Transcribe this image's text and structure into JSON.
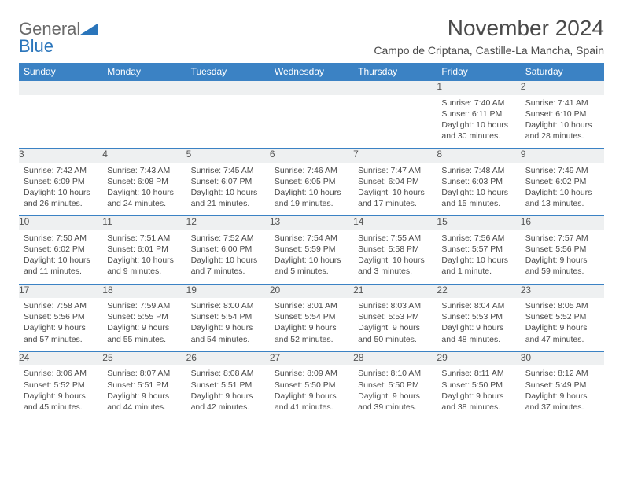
{
  "brand": {
    "part1": "General",
    "part2": "Blue"
  },
  "title": "November 2024",
  "location": "Campo de Criptana, Castille-La Mancha, Spain",
  "colors": {
    "header_bg": "#3b82c4",
    "header_text": "#ffffff",
    "daynum_bg": "#eef0f1",
    "border": "#3b82c4",
    "text": "#4a4a4a",
    "brand_gray": "#6a6a6a",
    "brand_blue": "#2a75bb"
  },
  "weekdays": [
    "Sunday",
    "Monday",
    "Tuesday",
    "Wednesday",
    "Thursday",
    "Friday",
    "Saturday"
  ],
  "weeks": [
    [
      null,
      null,
      null,
      null,
      null,
      {
        "n": "1",
        "sunrise": "Sunrise: 7:40 AM",
        "sunset": "Sunset: 6:11 PM",
        "daylight": "Daylight: 10 hours and 30 minutes."
      },
      {
        "n": "2",
        "sunrise": "Sunrise: 7:41 AM",
        "sunset": "Sunset: 6:10 PM",
        "daylight": "Daylight: 10 hours and 28 minutes."
      }
    ],
    [
      {
        "n": "3",
        "sunrise": "Sunrise: 7:42 AM",
        "sunset": "Sunset: 6:09 PM",
        "daylight": "Daylight: 10 hours and 26 minutes."
      },
      {
        "n": "4",
        "sunrise": "Sunrise: 7:43 AM",
        "sunset": "Sunset: 6:08 PM",
        "daylight": "Daylight: 10 hours and 24 minutes."
      },
      {
        "n": "5",
        "sunrise": "Sunrise: 7:45 AM",
        "sunset": "Sunset: 6:07 PM",
        "daylight": "Daylight: 10 hours and 21 minutes."
      },
      {
        "n": "6",
        "sunrise": "Sunrise: 7:46 AM",
        "sunset": "Sunset: 6:05 PM",
        "daylight": "Daylight: 10 hours and 19 minutes."
      },
      {
        "n": "7",
        "sunrise": "Sunrise: 7:47 AM",
        "sunset": "Sunset: 6:04 PM",
        "daylight": "Daylight: 10 hours and 17 minutes."
      },
      {
        "n": "8",
        "sunrise": "Sunrise: 7:48 AM",
        "sunset": "Sunset: 6:03 PM",
        "daylight": "Daylight: 10 hours and 15 minutes."
      },
      {
        "n": "9",
        "sunrise": "Sunrise: 7:49 AM",
        "sunset": "Sunset: 6:02 PM",
        "daylight": "Daylight: 10 hours and 13 minutes."
      }
    ],
    [
      {
        "n": "10",
        "sunrise": "Sunrise: 7:50 AM",
        "sunset": "Sunset: 6:02 PM",
        "daylight": "Daylight: 10 hours and 11 minutes."
      },
      {
        "n": "11",
        "sunrise": "Sunrise: 7:51 AM",
        "sunset": "Sunset: 6:01 PM",
        "daylight": "Daylight: 10 hours and 9 minutes."
      },
      {
        "n": "12",
        "sunrise": "Sunrise: 7:52 AM",
        "sunset": "Sunset: 6:00 PM",
        "daylight": "Daylight: 10 hours and 7 minutes."
      },
      {
        "n": "13",
        "sunrise": "Sunrise: 7:54 AM",
        "sunset": "Sunset: 5:59 PM",
        "daylight": "Daylight: 10 hours and 5 minutes."
      },
      {
        "n": "14",
        "sunrise": "Sunrise: 7:55 AM",
        "sunset": "Sunset: 5:58 PM",
        "daylight": "Daylight: 10 hours and 3 minutes."
      },
      {
        "n": "15",
        "sunrise": "Sunrise: 7:56 AM",
        "sunset": "Sunset: 5:57 PM",
        "daylight": "Daylight: 10 hours and 1 minute."
      },
      {
        "n": "16",
        "sunrise": "Sunrise: 7:57 AM",
        "sunset": "Sunset: 5:56 PM",
        "daylight": "Daylight: 9 hours and 59 minutes."
      }
    ],
    [
      {
        "n": "17",
        "sunrise": "Sunrise: 7:58 AM",
        "sunset": "Sunset: 5:56 PM",
        "daylight": "Daylight: 9 hours and 57 minutes."
      },
      {
        "n": "18",
        "sunrise": "Sunrise: 7:59 AM",
        "sunset": "Sunset: 5:55 PM",
        "daylight": "Daylight: 9 hours and 55 minutes."
      },
      {
        "n": "19",
        "sunrise": "Sunrise: 8:00 AM",
        "sunset": "Sunset: 5:54 PM",
        "daylight": "Daylight: 9 hours and 54 minutes."
      },
      {
        "n": "20",
        "sunrise": "Sunrise: 8:01 AM",
        "sunset": "Sunset: 5:54 PM",
        "daylight": "Daylight: 9 hours and 52 minutes."
      },
      {
        "n": "21",
        "sunrise": "Sunrise: 8:03 AM",
        "sunset": "Sunset: 5:53 PM",
        "daylight": "Daylight: 9 hours and 50 minutes."
      },
      {
        "n": "22",
        "sunrise": "Sunrise: 8:04 AM",
        "sunset": "Sunset: 5:53 PM",
        "daylight": "Daylight: 9 hours and 48 minutes."
      },
      {
        "n": "23",
        "sunrise": "Sunrise: 8:05 AM",
        "sunset": "Sunset: 5:52 PM",
        "daylight": "Daylight: 9 hours and 47 minutes."
      }
    ],
    [
      {
        "n": "24",
        "sunrise": "Sunrise: 8:06 AM",
        "sunset": "Sunset: 5:52 PM",
        "daylight": "Daylight: 9 hours and 45 minutes."
      },
      {
        "n": "25",
        "sunrise": "Sunrise: 8:07 AM",
        "sunset": "Sunset: 5:51 PM",
        "daylight": "Daylight: 9 hours and 44 minutes."
      },
      {
        "n": "26",
        "sunrise": "Sunrise: 8:08 AM",
        "sunset": "Sunset: 5:51 PM",
        "daylight": "Daylight: 9 hours and 42 minutes."
      },
      {
        "n": "27",
        "sunrise": "Sunrise: 8:09 AM",
        "sunset": "Sunset: 5:50 PM",
        "daylight": "Daylight: 9 hours and 41 minutes."
      },
      {
        "n": "28",
        "sunrise": "Sunrise: 8:10 AM",
        "sunset": "Sunset: 5:50 PM",
        "daylight": "Daylight: 9 hours and 39 minutes."
      },
      {
        "n": "29",
        "sunrise": "Sunrise: 8:11 AM",
        "sunset": "Sunset: 5:50 PM",
        "daylight": "Daylight: 9 hours and 38 minutes."
      },
      {
        "n": "30",
        "sunrise": "Sunrise: 8:12 AM",
        "sunset": "Sunset: 5:49 PM",
        "daylight": "Daylight: 9 hours and 37 minutes."
      }
    ]
  ]
}
